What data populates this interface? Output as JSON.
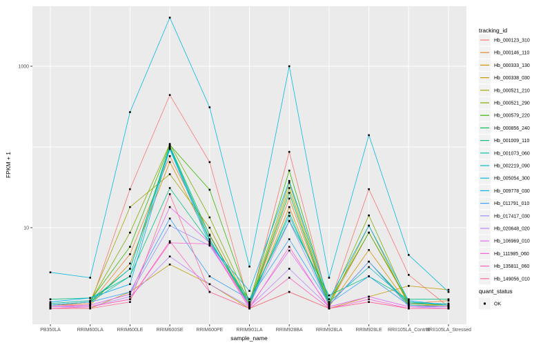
{
  "figure": {
    "x_axis_label": "sample_name",
    "y_axis_label": "FPKM + 1"
  },
  "legend": {
    "color": {
      "title": "tracking_id"
    },
    "shape": {
      "title": "quant_status",
      "items": [
        {
          "label": "OK"
        }
      ]
    }
  },
  "chart_data": {
    "type": "line",
    "title": "",
    "xlabel": "sample_name",
    "ylabel": "FPKM + 1",
    "y_scale": "log10",
    "y_tick_values": [
      1000,
      10
    ],
    "y_gridlines": [
      10,
      100,
      1000
    ],
    "ylim": [
      0.63,
      5000
    ],
    "legend_position": "right",
    "grid": true,
    "panel_background": "#EBEBEB",
    "gridline_color": "#FFFFFF",
    "point_shape": "square",
    "point_color": "#000000",
    "categories": [
      "PB350LA",
      "RRIM600LA",
      "RRIM600LE",
      "RRIM600SE",
      "RRIM600PE",
      "RRIM901LA",
      "RRIM928BA",
      "RRIM928LA",
      "RRIM928LE",
      "RRII105LA_Control",
      "RRII105LA_Stressed"
    ],
    "series": [
      {
        "name": "Hb_000123_310",
        "color": "#F8766D",
        "values": [
          1.1,
          1.1,
          30,
          440,
          65,
          1.1,
          87,
          1.1,
          30,
          2.6,
          1.05
        ]
      },
      {
        "name": "Hb_000146_110",
        "color": "#EA8331",
        "values": [
          1.1,
          1.15,
          4.7,
          77,
          8.2,
          1.1,
          23,
          1.1,
          8.7,
          1.15,
          1.25
        ]
      },
      {
        "name": "Hb_000333_130",
        "color": "#D89000",
        "values": [
          1.05,
          1.1,
          3.6,
          65,
          7.2,
          1.05,
          18,
          1.05,
          5.3,
          1.1,
          1.1
        ]
      },
      {
        "name": "Hb_000338_030",
        "color": "#C09B00",
        "values": [
          1.0,
          1.0,
          1.6,
          3.5,
          2.0,
          1.0,
          1.6,
          1.0,
          1.4,
          1.9,
          1.7
        ]
      },
      {
        "name": "Hb_000521_210",
        "color": "#A3A500",
        "values": [
          1.1,
          1.2,
          18,
          46,
          10,
          1.1,
          31,
          1.1,
          10.6,
          1.1,
          1.05
        ]
      },
      {
        "name": "Hb_000521_290",
        "color": "#7CAE00",
        "values": [
          1.1,
          1.2,
          8.7,
          109,
          13.4,
          1.15,
          36,
          1.15,
          14.2,
          1.15,
          1.1
        ]
      },
      {
        "name": "Hb_000579_220",
        "color": "#39B600",
        "values": [
          1.15,
          1.25,
          5.8,
          106,
          29.5,
          1.2,
          51,
          1.2,
          8.7,
          1.2,
          1.1
        ]
      },
      {
        "name": "Hb_000856_240",
        "color": "#00BB4E",
        "values": [
          1.1,
          1.2,
          3.1,
          103,
          8.0,
          1.1,
          27,
          1.1,
          3.8,
          1.1,
          1.05
        ]
      },
      {
        "name": "Hb_001009_110",
        "color": "#00BF7D",
        "values": [
          1.3,
          1.35,
          2.5,
          31,
          6.5,
          1.3,
          12.2,
          1.45,
          2.5,
          1.3,
          1.3
        ]
      },
      {
        "name": "Hb_001073_060",
        "color": "#00C1A3",
        "values": [
          1.1,
          1.2,
          2.5,
          100,
          7.2,
          1.1,
          15.4,
          1.1,
          3.8,
          1.15,
          1.15
        ]
      },
      {
        "name": "Hb_002219_090",
        "color": "#00BFC4",
        "values": [
          1.15,
          1.25,
          3.1,
          97,
          6.8,
          1.2,
          14,
          1.2,
          3.25,
          1.2,
          1.1
        ]
      },
      {
        "name": "Hb_005054_300",
        "color": "#00BAE0",
        "values": [
          2.8,
          2.4,
          270,
          4000,
          310,
          3.3,
          1000,
          2.4,
          140,
          4.6,
          1.6
        ]
      },
      {
        "name": "Hb_009778_030",
        "color": "#00B0F6",
        "values": [
          1.2,
          1.35,
          2.0,
          94,
          6.2,
          1.65,
          38,
          1.3,
          10.6,
          1.25,
          1.1
        ]
      },
      {
        "name": "Hb_011791_010",
        "color": "#35A2FF",
        "values": [
          1.1,
          1.2,
          1.6,
          13,
          2.5,
          1.3,
          7.2,
          1.15,
          2.5,
          1.1,
          1.05
        ]
      },
      {
        "name": "Hb_017417_030",
        "color": "#9590FF",
        "values": [
          1.05,
          1.1,
          1.5,
          10.6,
          6.0,
          1.1,
          12,
          1.1,
          3.8,
          1.05,
          1.05
        ]
      },
      {
        "name": "Hb_020648_020",
        "color": "#B983FF",
        "values": [
          1.05,
          1.05,
          1.4,
          4.4,
          2.0,
          1.05,
          3.1,
          1.05,
          1.4,
          1.05,
          1.0
        ]
      },
      {
        "name": "Hb_106969_010",
        "color": "#E76BF3",
        "values": [
          1.05,
          1.1,
          1.5,
          18,
          6.5,
          1.05,
          5.2,
          1.05,
          1.4,
          1.05,
          1.05
        ]
      },
      {
        "name": "Hb_111985_060",
        "color": "#FD61D1",
        "values": [
          1.0,
          1.05,
          1.3,
          6.5,
          6.3,
          1.0,
          5.8,
          1.0,
          1.3,
          1.0,
          1.0
        ]
      },
      {
        "name": "Hb_135811_060",
        "color": "#FF62BC",
        "values": [
          1.0,
          1.05,
          1.3,
          6.8,
          1.6,
          1.0,
          2.4,
          1.0,
          1.2,
          1.0,
          1.0
        ]
      },
      {
        "name": "Hb_149056_010",
        "color": "#FF6A98",
        "values": [
          1.0,
          1.0,
          1.2,
          26,
          1.6,
          1.0,
          1.6,
          1.0,
          1.2,
          1.0,
          1.0
        ]
      }
    ],
    "quant_status": "OK"
  }
}
